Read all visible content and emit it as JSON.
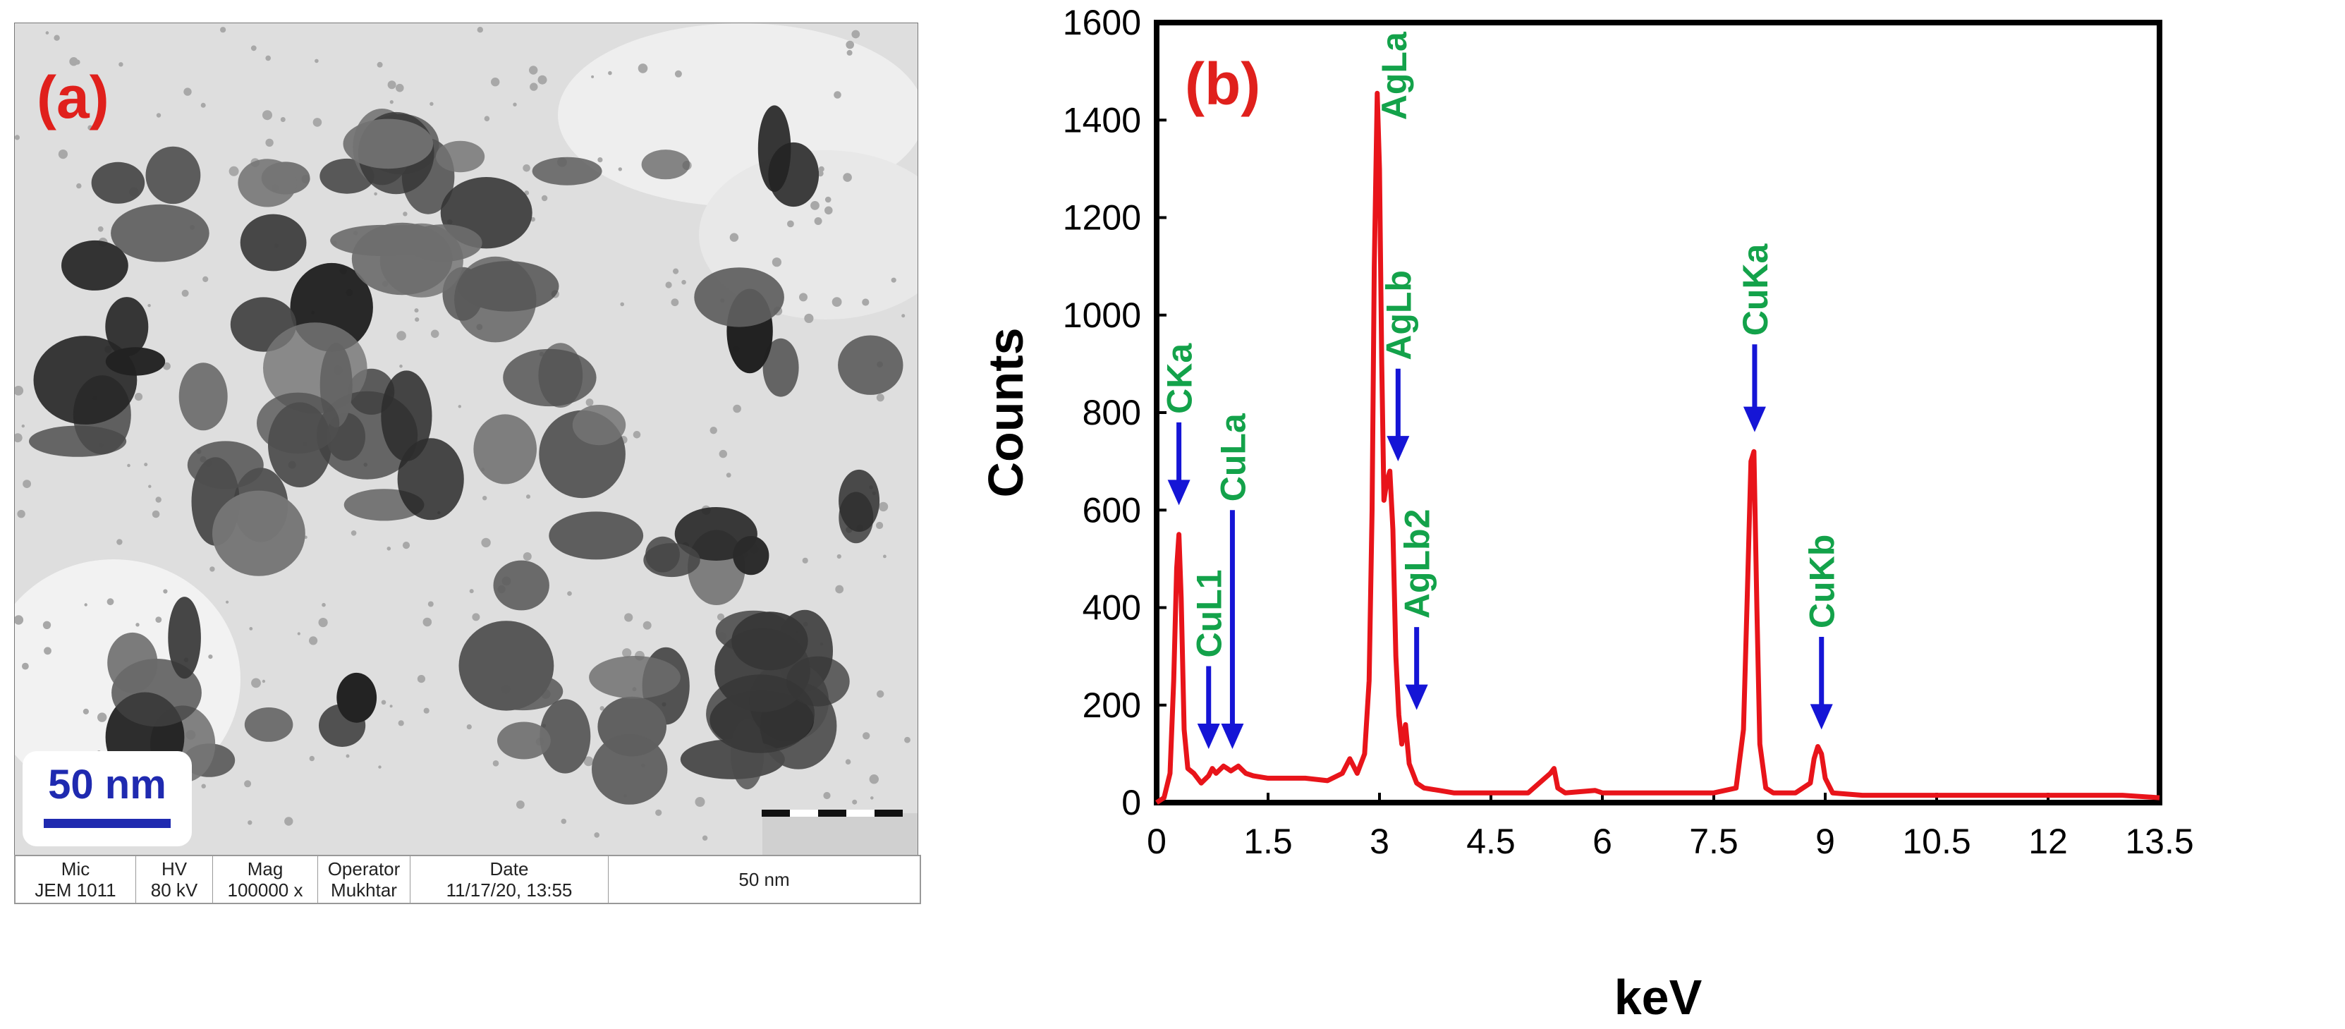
{
  "panel_a": {
    "label": "(a)",
    "scale_label": "50 nm",
    "scale_label_overlay": "50 nm",
    "info_table": {
      "columns": [
        {
          "header": "Mic",
          "value": "JEM 1011"
        },
        {
          "header": "HV",
          "value": "80 kV"
        },
        {
          "header": "Mag",
          "value": "100000 x"
        },
        {
          "header": "Operator",
          "value": "Mukhtar"
        },
        {
          "header": "Date",
          "value": "11/17/20, 13:55"
        }
      ],
      "scale_text": "50 nm"
    }
  },
  "chart_data": {
    "type": "line",
    "panel_label": "(b)",
    "xlabel": "keV",
    "ylabel": "Counts",
    "xlim": [
      0,
      13.5
    ],
    "ylim": [
      0,
      1600
    ],
    "x_ticks": [
      "0",
      "1.5",
      "3",
      "4.5",
      "6",
      "7.5",
      "9",
      "10.5",
      "12",
      "13.5"
    ],
    "y_ticks": [
      "0",
      "200",
      "400",
      "600",
      "800",
      "1000",
      "1200",
      "1400",
      "1600"
    ],
    "grid": false,
    "series": [
      {
        "color": "#e8141a",
        "x": [
          0,
          0.1,
          0.18,
          0.23,
          0.27,
          0.3,
          0.33,
          0.37,
          0.42,
          0.5,
          0.6,
          0.7,
          0.75,
          0.8,
          0.9,
          0.95,
          1.0,
          1.1,
          1.2,
          1.3,
          1.5,
          2.0,
          2.3,
          2.5,
          2.6,
          2.7,
          2.8,
          2.86,
          2.9,
          2.93,
          2.97,
          3.0,
          3.03,
          3.06,
          3.1,
          3.14,
          3.18,
          3.22,
          3.26,
          3.3,
          3.35,
          3.4,
          3.5,
          3.6,
          3.8,
          4.0,
          4.5,
          5.0,
          5.3,
          5.35,
          5.4,
          5.5,
          5.9,
          6.0,
          6.5,
          7.0,
          7.5,
          7.8,
          7.9,
          7.95,
          8.0,
          8.04,
          8.08,
          8.12,
          8.2,
          8.3,
          8.6,
          8.8,
          8.85,
          8.9,
          8.95,
          9.0,
          9.1,
          9.5,
          10.0,
          11.0,
          12.0,
          13.0,
          13.5
        ],
        "y": [
          0,
          10,
          60,
          250,
          480,
          550,
          420,
          150,
          70,
          60,
          40,
          55,
          70,
          60,
          75,
          70,
          65,
          75,
          60,
          55,
          50,
          50,
          45,
          60,
          90,
          60,
          100,
          250,
          600,
          1100,
          1455,
          1300,
          900,
          620,
          660,
          680,
          560,
          300,
          180,
          120,
          160,
          80,
          40,
          30,
          25,
          20,
          20,
          20,
          60,
          70,
          30,
          20,
          25,
          20,
          20,
          20,
          20,
          30,
          150,
          420,
          700,
          720,
          400,
          120,
          30,
          20,
          20,
          40,
          90,
          115,
          100,
          50,
          20,
          15,
          15,
          15,
          15,
          15,
          10
        ]
      }
    ],
    "annotations": [
      {
        "text": "CKa",
        "x": 0.3,
        "y": 610,
        "arrow_y0": 780
      },
      {
        "text": "CuL1",
        "x": 0.7,
        "y": 110,
        "arrow_y0": 280
      },
      {
        "text": "CuLa",
        "x": 1.02,
        "y": 110,
        "arrow_y0": 600
      },
      {
        "text": "AgLa",
        "x": 3.15,
        "y": 1400
      },
      {
        "text": "AgLb",
        "x": 3.25,
        "y": 700,
        "arrow_y0": 890
      },
      {
        "text": "AgLb2",
        "x": 3.5,
        "y": 190,
        "arrow_y0": 360
      },
      {
        "text": "CuKa",
        "x": 8.05,
        "y": 760,
        "arrow_y0": 940
      },
      {
        "text": "CuKb",
        "x": 8.95,
        "y": 150,
        "arrow_y0": 340
      }
    ],
    "colors": {
      "series": "#e8141a",
      "annotation_text": "#13a24a",
      "arrow": "#1515d6",
      "panel_label": "#e0201c"
    }
  }
}
